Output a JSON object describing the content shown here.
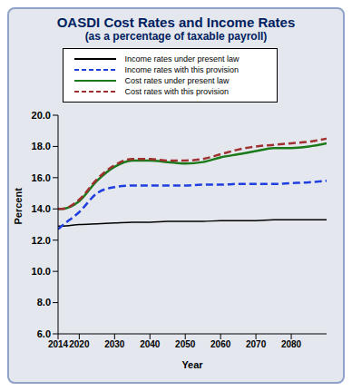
{
  "chart_data": {
    "type": "line",
    "title": "OASDI Cost Rates and Income Rates",
    "subtitle": "(as a percentage of taxable payroll)",
    "x_label": "Year",
    "y_label": "Percent",
    "x": [
      2014,
      2015,
      2020,
      2025,
      2030,
      2035,
      2040,
      2045,
      2050,
      2055,
      2060,
      2065,
      2070,
      2075,
      2080,
      2085,
      2090
    ],
    "series": [
      {
        "name": "Income rates under present law",
        "color": "#000000",
        "line_style": "solid",
        "values": [
          12.9,
          12.9,
          13.0,
          13.05,
          13.1,
          13.15,
          13.15,
          13.2,
          13.2,
          13.2,
          13.25,
          13.25,
          13.25,
          13.3,
          13.3,
          13.3,
          13.3
        ]
      },
      {
        "name": "Income rates with this provision",
        "color": "#1f3fe0",
        "line_style": "dashed",
        "values": [
          12.7,
          12.9,
          13.8,
          15.0,
          15.4,
          15.5,
          15.5,
          15.5,
          15.5,
          15.55,
          15.55,
          15.6,
          15.6,
          15.6,
          15.65,
          15.7,
          15.8
        ]
      },
      {
        "name": "Cost rates under present law",
        "color": "#1a7a1a",
        "line_style": "solid",
        "values": [
          14.0,
          14.0,
          14.5,
          15.8,
          16.7,
          17.1,
          17.1,
          17.0,
          16.9,
          17.0,
          17.3,
          17.5,
          17.7,
          17.9,
          17.9,
          18.0,
          18.2
        ]
      },
      {
        "name": "Cost rates with this provision",
        "color": "#a03030",
        "line_style": "dashed",
        "values": [
          14.0,
          14.0,
          14.6,
          15.9,
          16.8,
          17.2,
          17.2,
          17.1,
          17.1,
          17.2,
          17.5,
          17.8,
          18.0,
          18.1,
          18.2,
          18.3,
          18.5
        ]
      }
    ],
    "xlim": [
      2014,
      2090
    ],
    "xticks": [
      2014,
      2020,
      2030,
      2040,
      2050,
      2060,
      2070,
      2080
    ],
    "ylim": [
      6,
      20
    ],
    "yticks": [
      {
        "value": 6,
        "label": "6.0"
      },
      {
        "value": 8,
        "label": "8.0"
      },
      {
        "value": 10,
        "label": "10.0"
      },
      {
        "value": 12,
        "label": "12.0"
      },
      {
        "value": 14,
        "label": "14.0"
      },
      {
        "value": 16,
        "label": "16.0"
      },
      {
        "value": 18,
        "label": "18.0"
      },
      {
        "value": 20,
        "label": "20.0"
      }
    ],
    "grid": false,
    "legend": "top"
  }
}
